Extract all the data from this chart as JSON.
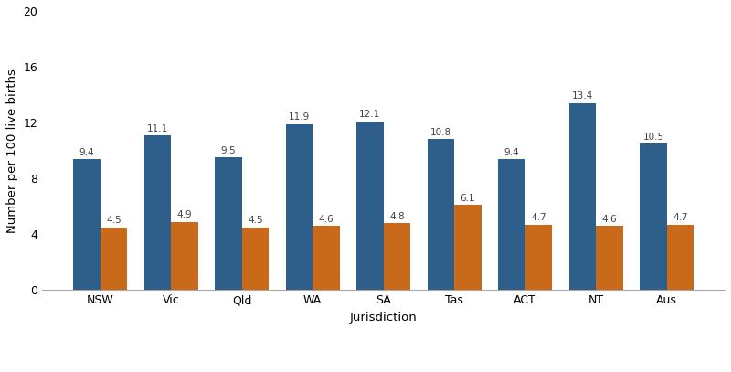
{
  "jurisdictions": [
    "NSW",
    "Vic",
    "Qld",
    "WA",
    "SA",
    "Tas",
    "ACT",
    "NT",
    "Aus"
  ],
  "indigenous_values": [
    9.4,
    11.1,
    9.5,
    11.9,
    12.1,
    10.8,
    9.4,
    13.4,
    10.5
  ],
  "non_indigenous_values": [
    4.5,
    4.9,
    4.5,
    4.6,
    4.8,
    6.1,
    4.7,
    4.6,
    4.7
  ],
  "indigenous_color": "#2E5F8A",
  "non_indigenous_color": "#C96A1A",
  "xlabel": "Jurisdiction",
  "ylabel": "Number per 100 live births",
  "ylim": [
    0,
    20
  ],
  "yticks": [
    0,
    4,
    8,
    12,
    16,
    20
  ],
  "bar_width": 0.38,
  "label_fontsize": 7.5,
  "axis_label_fontsize": 9.5,
  "tick_fontsize": 9,
  "legend_fontsize": 8.5,
  "background_color": "#ffffff"
}
